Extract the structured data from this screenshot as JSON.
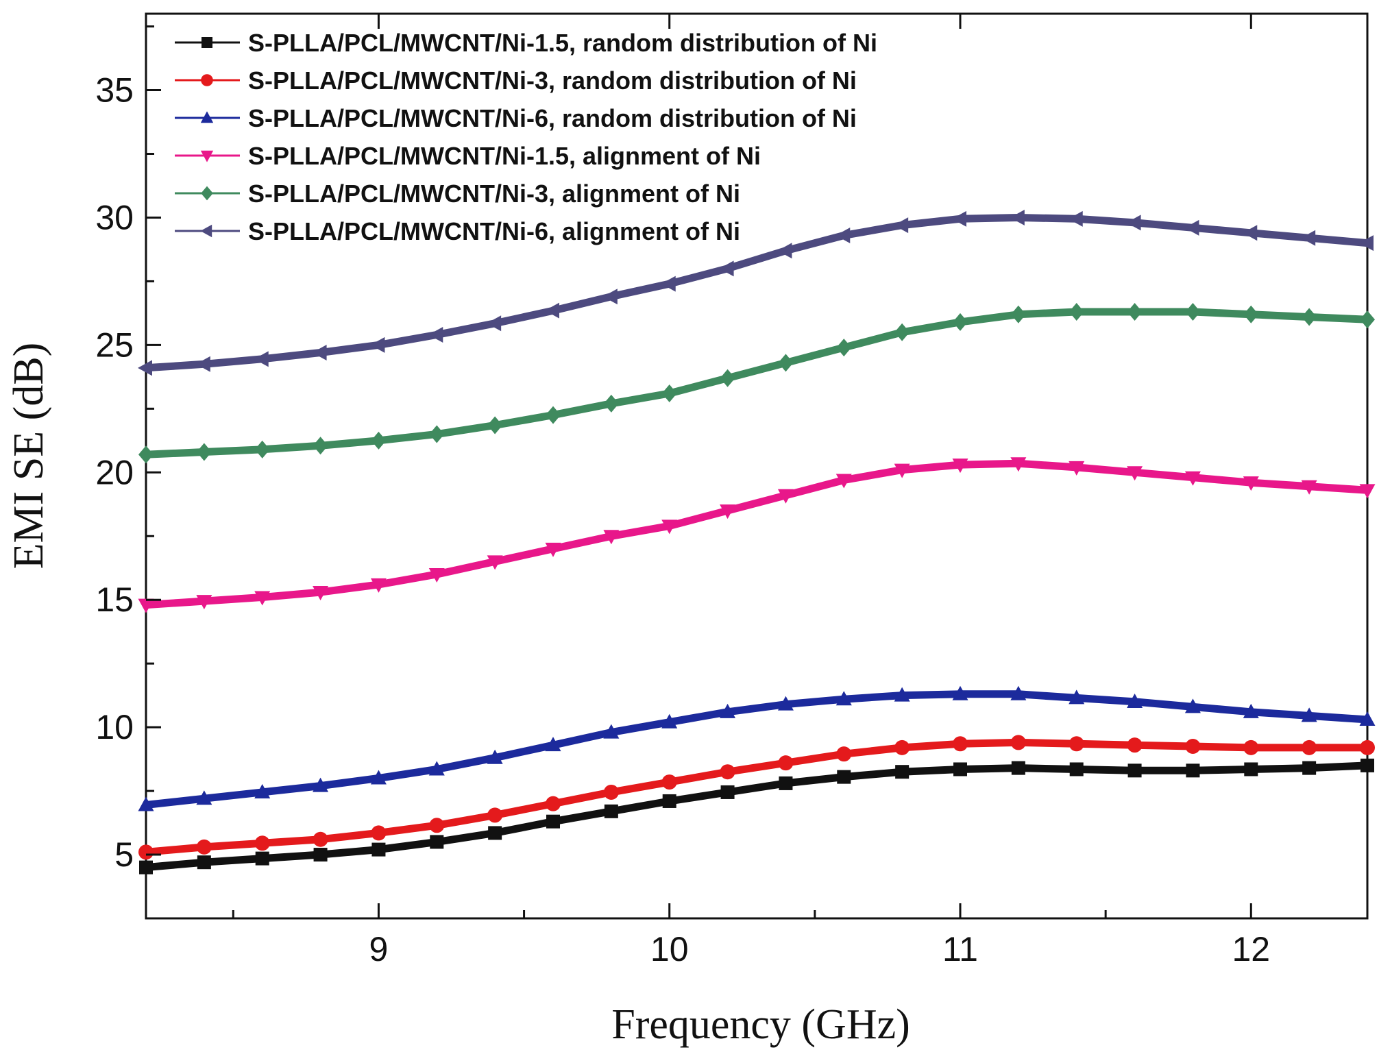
{
  "chart_data": {
    "type": "line",
    "title": "",
    "xlabel": "Frequency (GHz)",
    "ylabel": "EMI SE (dB)",
    "xlim": [
      8.2,
      12.4
    ],
    "ylim": [
      2.5,
      38
    ],
    "xticks": [
      9,
      10,
      11,
      12
    ],
    "xtick_labels": [
      "9",
      "10",
      "11",
      "12"
    ],
    "yticks": [
      5,
      10,
      15,
      20,
      25,
      30,
      35
    ],
    "ytick_labels": [
      "5",
      "10",
      "15",
      "20",
      "25",
      "30",
      "35"
    ],
    "grid": false,
    "legend_position": "top-left",
    "x": [
      8.2,
      8.4,
      8.6,
      8.8,
      9.0,
      9.2,
      9.4,
      9.6,
      9.8,
      10.0,
      10.2,
      10.4,
      10.6,
      10.8,
      11.0,
      11.2,
      11.4,
      11.6,
      11.8,
      12.0,
      12.2,
      12.4
    ],
    "series": [
      {
        "name": "S-PLLA/PCL/MWCNT/Ni-1.5, random distribution of Ni",
        "color": "#111111",
        "marker": "square",
        "values": [
          4.5,
          4.7,
          4.85,
          5.0,
          5.2,
          5.5,
          5.85,
          6.3,
          6.7,
          7.1,
          7.45,
          7.8,
          8.05,
          8.25,
          8.35,
          8.4,
          8.35,
          8.3,
          8.3,
          8.35,
          8.4,
          8.5
        ]
      },
      {
        "name": "S-PLLA/PCL/MWCNT/Ni-3, random distribution of Ni",
        "color": "#e41a1c",
        "marker": "circle",
        "values": [
          5.1,
          5.3,
          5.45,
          5.6,
          5.85,
          6.15,
          6.55,
          7.0,
          7.45,
          7.85,
          8.25,
          8.6,
          8.95,
          9.2,
          9.35,
          9.4,
          9.35,
          9.3,
          9.25,
          9.2,
          9.2,
          9.2
        ]
      },
      {
        "name": "S-PLLA/PCL/MWCNT/Ni-6, random distribution of Ni",
        "color": "#1c2a9c",
        "marker": "triangle-up",
        "values": [
          6.95,
          7.2,
          7.45,
          7.7,
          8.0,
          8.35,
          8.8,
          9.3,
          9.8,
          10.2,
          10.6,
          10.9,
          11.1,
          11.25,
          11.3,
          11.3,
          11.15,
          11.0,
          10.8,
          10.6,
          10.45,
          10.3
        ]
      },
      {
        "name": "S-PLLA/PCL/MWCNT/Ni-1.5, alignment of Ni",
        "color": "#e8178a",
        "marker": "triangle-down",
        "values": [
          14.8,
          14.95,
          15.1,
          15.3,
          15.6,
          16.0,
          16.5,
          17.0,
          17.5,
          17.9,
          18.5,
          19.1,
          19.7,
          20.1,
          20.3,
          20.35,
          20.2,
          20.0,
          19.8,
          19.6,
          19.45,
          19.3
        ]
      },
      {
        "name": "S-PLLA/PCL/MWCNT/Ni-3, alignment of Ni",
        "color": "#3f8a5e",
        "marker": "diamond",
        "values": [
          20.7,
          20.8,
          20.9,
          21.05,
          21.25,
          21.5,
          21.85,
          22.25,
          22.7,
          23.1,
          23.7,
          24.3,
          24.9,
          25.5,
          25.9,
          26.2,
          26.3,
          26.3,
          26.3,
          26.2,
          26.1,
          26.0
        ]
      },
      {
        "name": "S-PLLA/PCL/MWCNT/Ni-6, alignment of Ni",
        "color": "#4d4a7f",
        "marker": "triangle-left",
        "values": [
          24.1,
          24.25,
          24.45,
          24.7,
          25.0,
          25.4,
          25.85,
          26.35,
          26.9,
          27.4,
          28.0,
          28.7,
          29.3,
          29.7,
          29.95,
          30.0,
          29.95,
          29.8,
          29.6,
          29.4,
          29.2,
          29.0
        ]
      }
    ]
  }
}
